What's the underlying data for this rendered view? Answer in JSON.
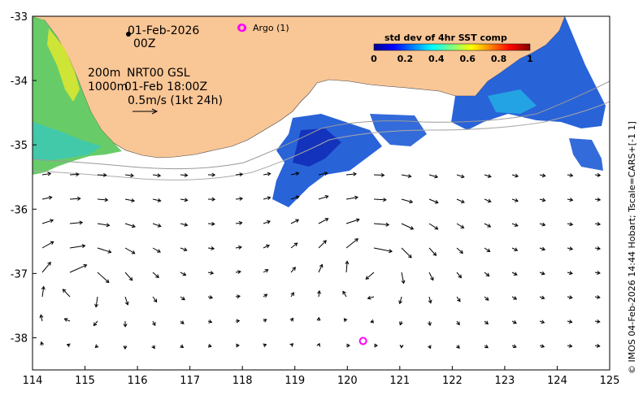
{
  "map": {
    "date_line": "01-Feb-2026",
    "hour_line": "00Z",
    "depth_200": "200m",
    "product": "NRT00 GSL",
    "depth_1000": "1000m",
    "current_time": "01-Feb 18:00Z",
    "scale_label": "0.5m/s (1kt 24h)",
    "argo_label": "Argo (1)",
    "credit": "© IMOS 04-Feb-2026 14:44 Hobart; Tscale=CARS+[-1 1]",
    "colors": {
      "land": "#f9c696",
      "argo": "#ff00ff",
      "vectors": "#000000"
    }
  },
  "colorbar": {
    "title": "std dev of 4hr SST comp",
    "ticks": [
      "0",
      "0.2",
      "0.4",
      "0.6",
      "0.8",
      "1"
    ],
    "palette": [
      "#00008f",
      "#0000ff",
      "#0080ff",
      "#00ffff",
      "#80ff80",
      "#ffff00",
      "#ff8000",
      "#ff0000",
      "#800000"
    ]
  },
  "axes": {
    "x_ticks": [
      "114",
      "115",
      "116",
      "117",
      "118",
      "119",
      "120",
      "121",
      "122",
      "123",
      "124",
      "125"
    ],
    "y_ticks": [
      "-33",
      "-34",
      "-35",
      "-36",
      "-37",
      "-38"
    ],
    "lon_range": [
      114,
      125
    ],
    "lat_range": [
      -38.5,
      -33
    ]
  },
  "argo_floats": [
    {
      "lon": 118.0,
      "lat": -33.18
    },
    {
      "lon": 120.3,
      "lat": -38.05
    }
  ]
}
